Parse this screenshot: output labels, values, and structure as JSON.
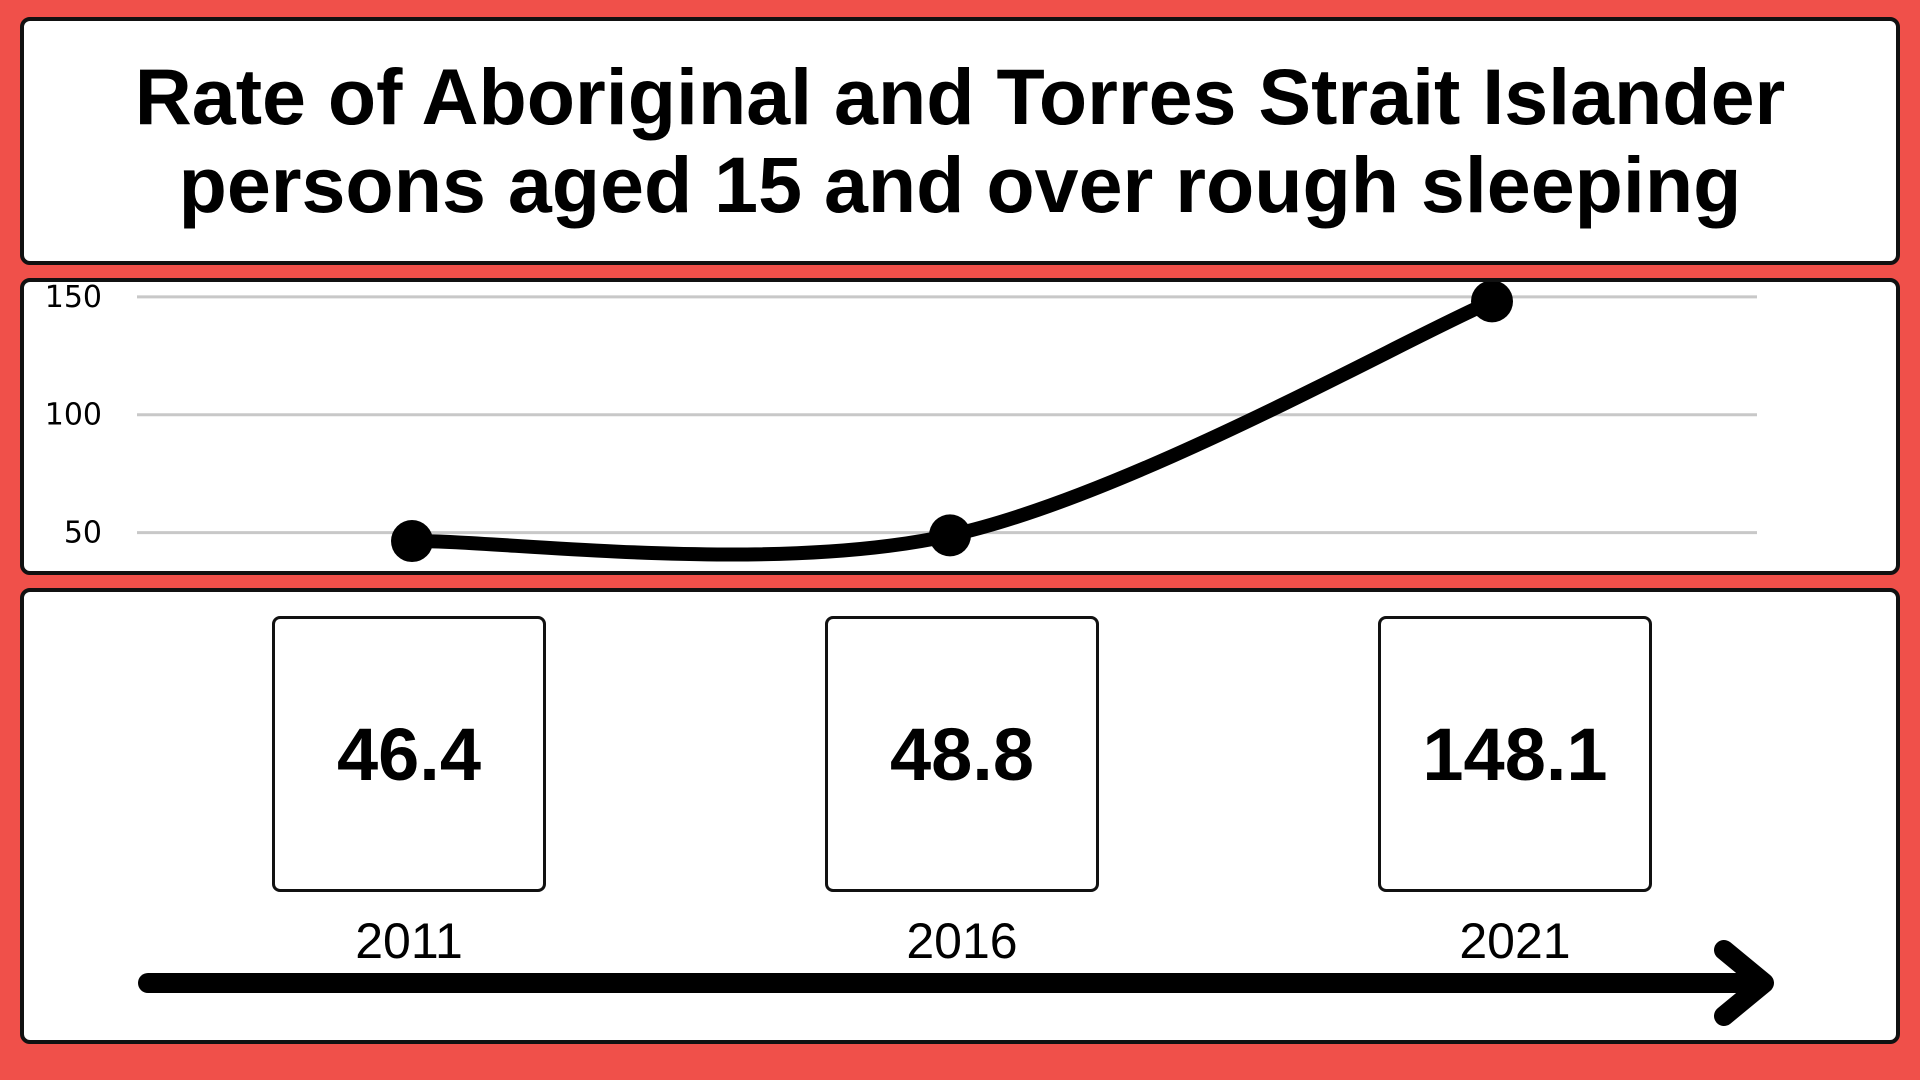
{
  "title_lines": [
    "Rate of Aboriginal and Torres Strait Islander",
    "persons aged 15 and over rough sleeping"
  ],
  "colors": {
    "background": "#F0504A",
    "panel": "#FFFFFF",
    "line": "#000000",
    "grid": "#C8C8C8"
  },
  "chart_data": {
    "type": "line",
    "title": "Rate of Aboriginal and Torres Strait Islander persons aged 15 and over rough sleeping",
    "categories": [
      "2011",
      "2016",
      "2021"
    ],
    "values": [
      46.4,
      48.8,
      148.1
    ],
    "y_ticks": [
      "150",
      "100",
      "50"
    ],
    "ylim": [
      32,
      158
    ],
    "grid": true,
    "legend": "none"
  },
  "value_cards": [
    {
      "value": "46.4",
      "year": "2011"
    },
    {
      "value": "48.8",
      "year": "2016"
    },
    {
      "value": "148.1",
      "year": "2021"
    }
  ]
}
